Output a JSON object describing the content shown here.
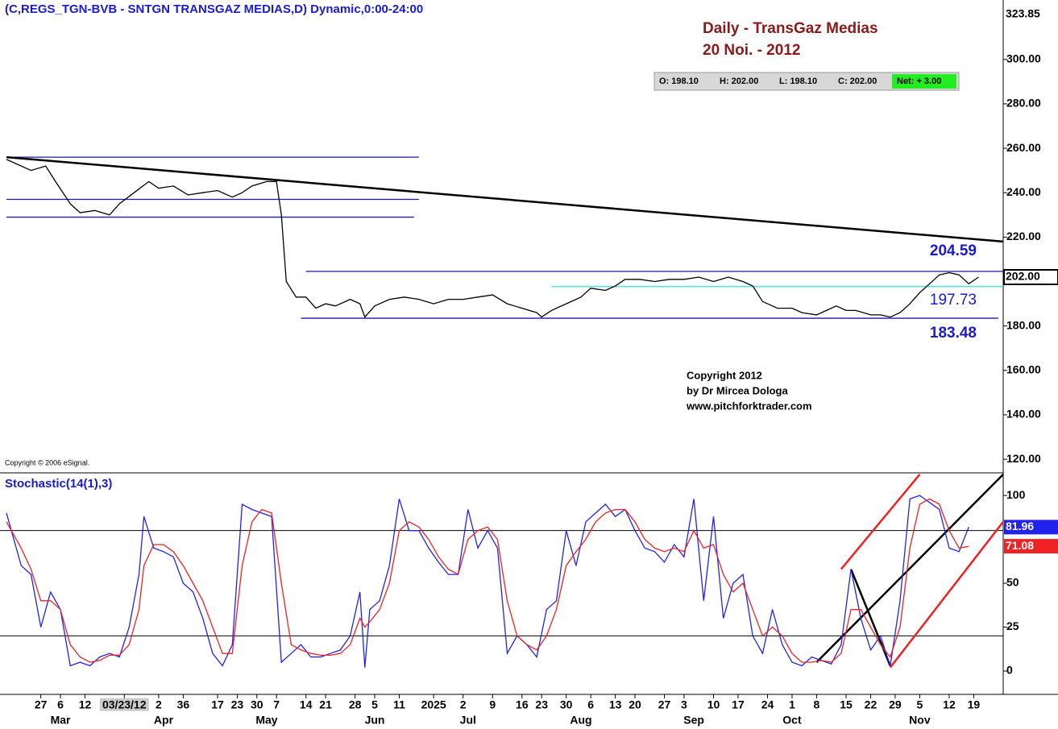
{
  "chart_data": [
    {
      "type": "line",
      "title": "(C,REGS_TGN-BVB - SNTGN TRANSGAZ MEDIAS,D) Dynamic,0:00-24:00",
      "annotations": [
        "Daily - TransGaz Medias",
        "20 Noi. - 2012"
      ],
      "quote": [
        "O: 198.10",
        "H: 202.00",
        "L: 198.10",
        "C: 202.00",
        "Net: + 3.00"
      ],
      "copyright": [
        "Copyright 2012",
        "by Dr Mircea Dologa",
        "www.pitchforktrader.com"
      ],
      "source_note": "Copyright © 2006 eSignal.",
      "xlim": [
        0,
        203
      ],
      "ylim": [
        114.6,
        323.85
      ],
      "top_label": {
        "value": 323.85,
        "label": "323.85"
      },
      "last_label": {
        "value": 202,
        "label": "202.00"
      },
      "yticks": [
        {
          "value": 120,
          "label": "120.00"
        },
        {
          "value": 140,
          "label": "140.00"
        },
        {
          "value": 160,
          "label": "160.00"
        },
        {
          "value": 180,
          "label": "180.00"
        },
        {
          "value": 220,
          "label": "220.00"
        },
        {
          "value": 240,
          "label": "240.00"
        },
        {
          "value": 260,
          "label": "260.00"
        },
        {
          "value": 280,
          "label": "280.00"
        },
        {
          "value": 300,
          "label": "300.00"
        }
      ],
      "series": [
        {
          "color": "#000000",
          "x": [
            0,
            5,
            8,
            10,
            13,
            15,
            18,
            21,
            23,
            26,
            29,
            31,
            34,
            37,
            40,
            43,
            46,
            48,
            50,
            53,
            55,
            56,
            57,
            59,
            61,
            63,
            65,
            67,
            70,
            72,
            73,
            75,
            78,
            81,
            84,
            87,
            90,
            93,
            96,
            99,
            102,
            105,
            108,
            109,
            111,
            114,
            117,
            119,
            122,
            124,
            126,
            129,
            132,
            135,
            138,
            141,
            144,
            147,
            150,
            152,
            154,
            157,
            160,
            162,
            165,
            167,
            169,
            171,
            173,
            176,
            178,
            180,
            182,
            184,
            186,
            188,
            190,
            192,
            194,
            196,
            198
          ],
          "values": [
            255,
            250,
            252,
            245,
            235,
            231,
            232,
            230,
            235,
            240,
            245,
            242,
            243,
            239,
            240,
            241,
            238,
            240,
            243,
            245,
            245,
            230,
            200,
            193,
            193,
            188,
            190,
            189,
            192,
            190,
            184,
            189,
            192,
            193,
            192,
            190,
            192,
            192,
            193,
            194,
            190,
            188,
            186,
            184,
            187,
            190,
            193,
            197,
            196,
            198,
            201,
            201,
            200,
            201,
            201,
            202,
            200,
            202,
            200,
            198,
            191,
            188,
            188,
            186,
            185,
            187,
            189,
            187,
            187,
            185,
            185,
            184,
            186,
            190,
            195,
            199,
            203,
            204,
            203,
            199,
            202
          ]
        }
      ],
      "levels": [
        {
          "value": 256,
          "x": [
            0,
            84
          ],
          "color": "#1a1aa8",
          "labeled": false
        },
        {
          "value": 237,
          "x": [
            0,
            84
          ],
          "color": "#1a1aa8",
          "labeled": false
        },
        {
          "value": 229,
          "x": [
            0,
            83
          ],
          "color": "#1a1aa8",
          "labeled": false
        },
        {
          "value": 204.59,
          "x": [
            61,
            203
          ],
          "color": "#1a1aa8",
          "labeled": true
        },
        {
          "value": 197.73,
          "x": [
            111,
            203
          ],
          "color": "#33dddd",
          "labeled": true
        },
        {
          "value": 183.48,
          "x": [
            60,
            202
          ],
          "color": "#1a1aa8",
          "labeled": true
        }
      ],
      "trendlines": [
        {
          "color": "#000000",
          "x": [
            0,
            203
          ],
          "y": [
            256,
            218
          ]
        }
      ]
    },
    {
      "type": "line",
      "title": "Stochastic(14(1),3)",
      "xlim": [
        0,
        203
      ],
      "ylim": [
        -13.3,
        111.5
      ],
      "yticks": [
        0,
        25,
        50,
        100
      ],
      "levels": [
        80,
        20
      ],
      "x": [
        0,
        3,
        5,
        7,
        9,
        11,
        13,
        15,
        17,
        19,
        21,
        23,
        25,
        27,
        28,
        30,
        32,
        34,
        36,
        38,
        40,
        42,
        44,
        46,
        48,
        50,
        52,
        54,
        56,
        58,
        60,
        62,
        64,
        66,
        68,
        70,
        72,
        73,
        74,
        76,
        78,
        80,
        82,
        84,
        86,
        88,
        90,
        92,
        94,
        96,
        98,
        100,
        102,
        104,
        106,
        108,
        110,
        112,
        114,
        116,
        118,
        120,
        122,
        124,
        126,
        128,
        130,
        132,
        134,
        136,
        138,
        140,
        142,
        144,
        146,
        148,
        150,
        152,
        154,
        156,
        158,
        160,
        162,
        164,
        166,
        168,
        170,
        172,
        174,
        176,
        178,
        180,
        182,
        184,
        186,
        188,
        190,
        192,
        194,
        196
      ],
      "series": [
        {
          "color": "#2222ee",
          "last_label": {
            "value": 81.96,
            "label": "81.96"
          },
          "values": [
            90,
            60,
            55,
            25,
            45,
            35,
            3,
            5,
            3,
            8,
            10,
            8,
            25,
            55,
            88,
            70,
            68,
            65,
            50,
            45,
            30,
            10,
            3,
            15,
            95,
            92,
            90,
            88,
            5,
            10,
            15,
            8,
            8,
            10,
            12,
            20,
            45,
            2,
            35,
            40,
            60,
            98,
            80,
            80,
            70,
            62,
            55,
            55,
            92,
            70,
            80,
            70,
            10,
            20,
            15,
            8,
            35,
            40,
            80,
            60,
            85,
            90,
            95,
            88,
            92,
            80,
            70,
            68,
            62,
            72,
            65,
            98,
            40,
            88,
            30,
            50,
            55,
            20,
            10,
            35,
            15,
            5,
            3,
            8,
            6,
            4,
            15,
            58,
            30,
            12,
            20,
            3,
            40,
            98,
            100,
            96,
            92,
            70,
            68,
            82
          ]
        },
        {
          "color": "#ee2222",
          "last_label": {
            "value": 71.08,
            "label": "71.08"
          },
          "values": [
            85,
            70,
            58,
            40,
            40,
            35,
            15,
            8,
            5,
            6,
            9,
            9,
            15,
            35,
            60,
            72,
            72,
            68,
            60,
            50,
            40,
            25,
            10,
            10,
            60,
            85,
            92,
            90,
            50,
            15,
            12,
            10,
            9,
            9,
            10,
            15,
            30,
            25,
            28,
            35,
            50,
            80,
            85,
            82,
            75,
            65,
            58,
            55,
            75,
            80,
            82,
            75,
            40,
            20,
            15,
            12,
            20,
            35,
            60,
            68,
            75,
            85,
            90,
            92,
            92,
            85,
            75,
            70,
            68,
            70,
            68,
            80,
            70,
            72,
            55,
            45,
            50,
            35,
            20,
            25,
            20,
            10,
            5,
            5,
            6,
            5,
            10,
            35,
            35,
            25,
            15,
            8,
            25,
            70,
            95,
            98,
            95,
            80,
            70,
            71
          ]
        }
      ],
      "trendlines": [
        {
          "color": "#ee2222",
          "x": [
            170,
            186
          ],
          "y": [
            58,
            112
          ]
        },
        {
          "color": "#ee2222",
          "x": [
            180,
            203
          ],
          "y": [
            2,
            85
          ]
        },
        {
          "color": "#000000",
          "x": [
            165,
            203
          ],
          "y": [
            5,
            112
          ]
        },
        {
          "color": "#000000",
          "x": [
            172,
            180
          ],
          "y": [
            58,
            3
          ]
        }
      ],
      "xticks": [
        {
          "value": 7,
          "label": "27"
        },
        {
          "value": 11,
          "label": "6"
        },
        {
          "value": 16,
          "label": "12"
        },
        {
          "value": 24,
          "label": "03/23/12"
        },
        {
          "value": 31,
          "label": "2"
        },
        36,
        {
          "value": 43,
          "label": "17"
        },
        {
          "value": 47,
          "label": "23"
        },
        {
          "value": 51,
          "label": "30"
        },
        {
          "value": 55,
          "label": "7"
        },
        {
          "value": 61,
          "label": "14"
        },
        {
          "value": 65,
          "label": "21"
        },
        {
          "value": 71,
          "label": "28"
        },
        {
          "value": 75,
          "label": "5"
        },
        {
          "value": 80,
          "label": "11"
        },
        {
          "value": 87,
          "label": "2025"
        },
        {
          "value": 93,
          "label": "2"
        },
        {
          "value": 99,
          "label": "9"
        },
        {
          "value": 105,
          "label": "16"
        },
        {
          "value": 109,
          "label": "23"
        },
        {
          "value": 114,
          "label": "30"
        },
        {
          "value": 119,
          "label": "6"
        },
        {
          "value": 124,
          "label": "13"
        },
        {
          "value": 128,
          "label": "20"
        },
        {
          "value": 134,
          "label": "27"
        },
        {
          "value": 138,
          "label": "3"
        },
        {
          "value": 144,
          "label": "10"
        },
        {
          "value": 149,
          "label": "17"
        },
        {
          "value": 155,
          "label": "24"
        },
        {
          "value": 160,
          "label": "1"
        },
        {
          "value": 165,
          "label": "8"
        },
        {
          "value": 171,
          "label": "15"
        },
        {
          "value": 176,
          "label": "22"
        },
        {
          "value": 181,
          "label": "29"
        },
        {
          "value": 186,
          "label": "5"
        },
        {
          "value": 192,
          "label": "12"
        },
        {
          "value": 197,
          "label": "19"
        }
      ],
      "month_ticks": [
        {
          "value": 11,
          "label": "Mar"
        },
        {
          "value": 32,
          "label": "Apr"
        },
        {
          "value": 53,
          "label": "May"
        },
        {
          "value": 75,
          "label": "Jun"
        },
        {
          "value": 94,
          "label": "Jul"
        },
        {
          "value": 117,
          "label": "Aug"
        },
        {
          "value": 140,
          "label": "Sep"
        },
        {
          "value": 160,
          "label": "Oct"
        },
        {
          "value": 186,
          "label": "Nov"
        }
      ]
    }
  ]
}
